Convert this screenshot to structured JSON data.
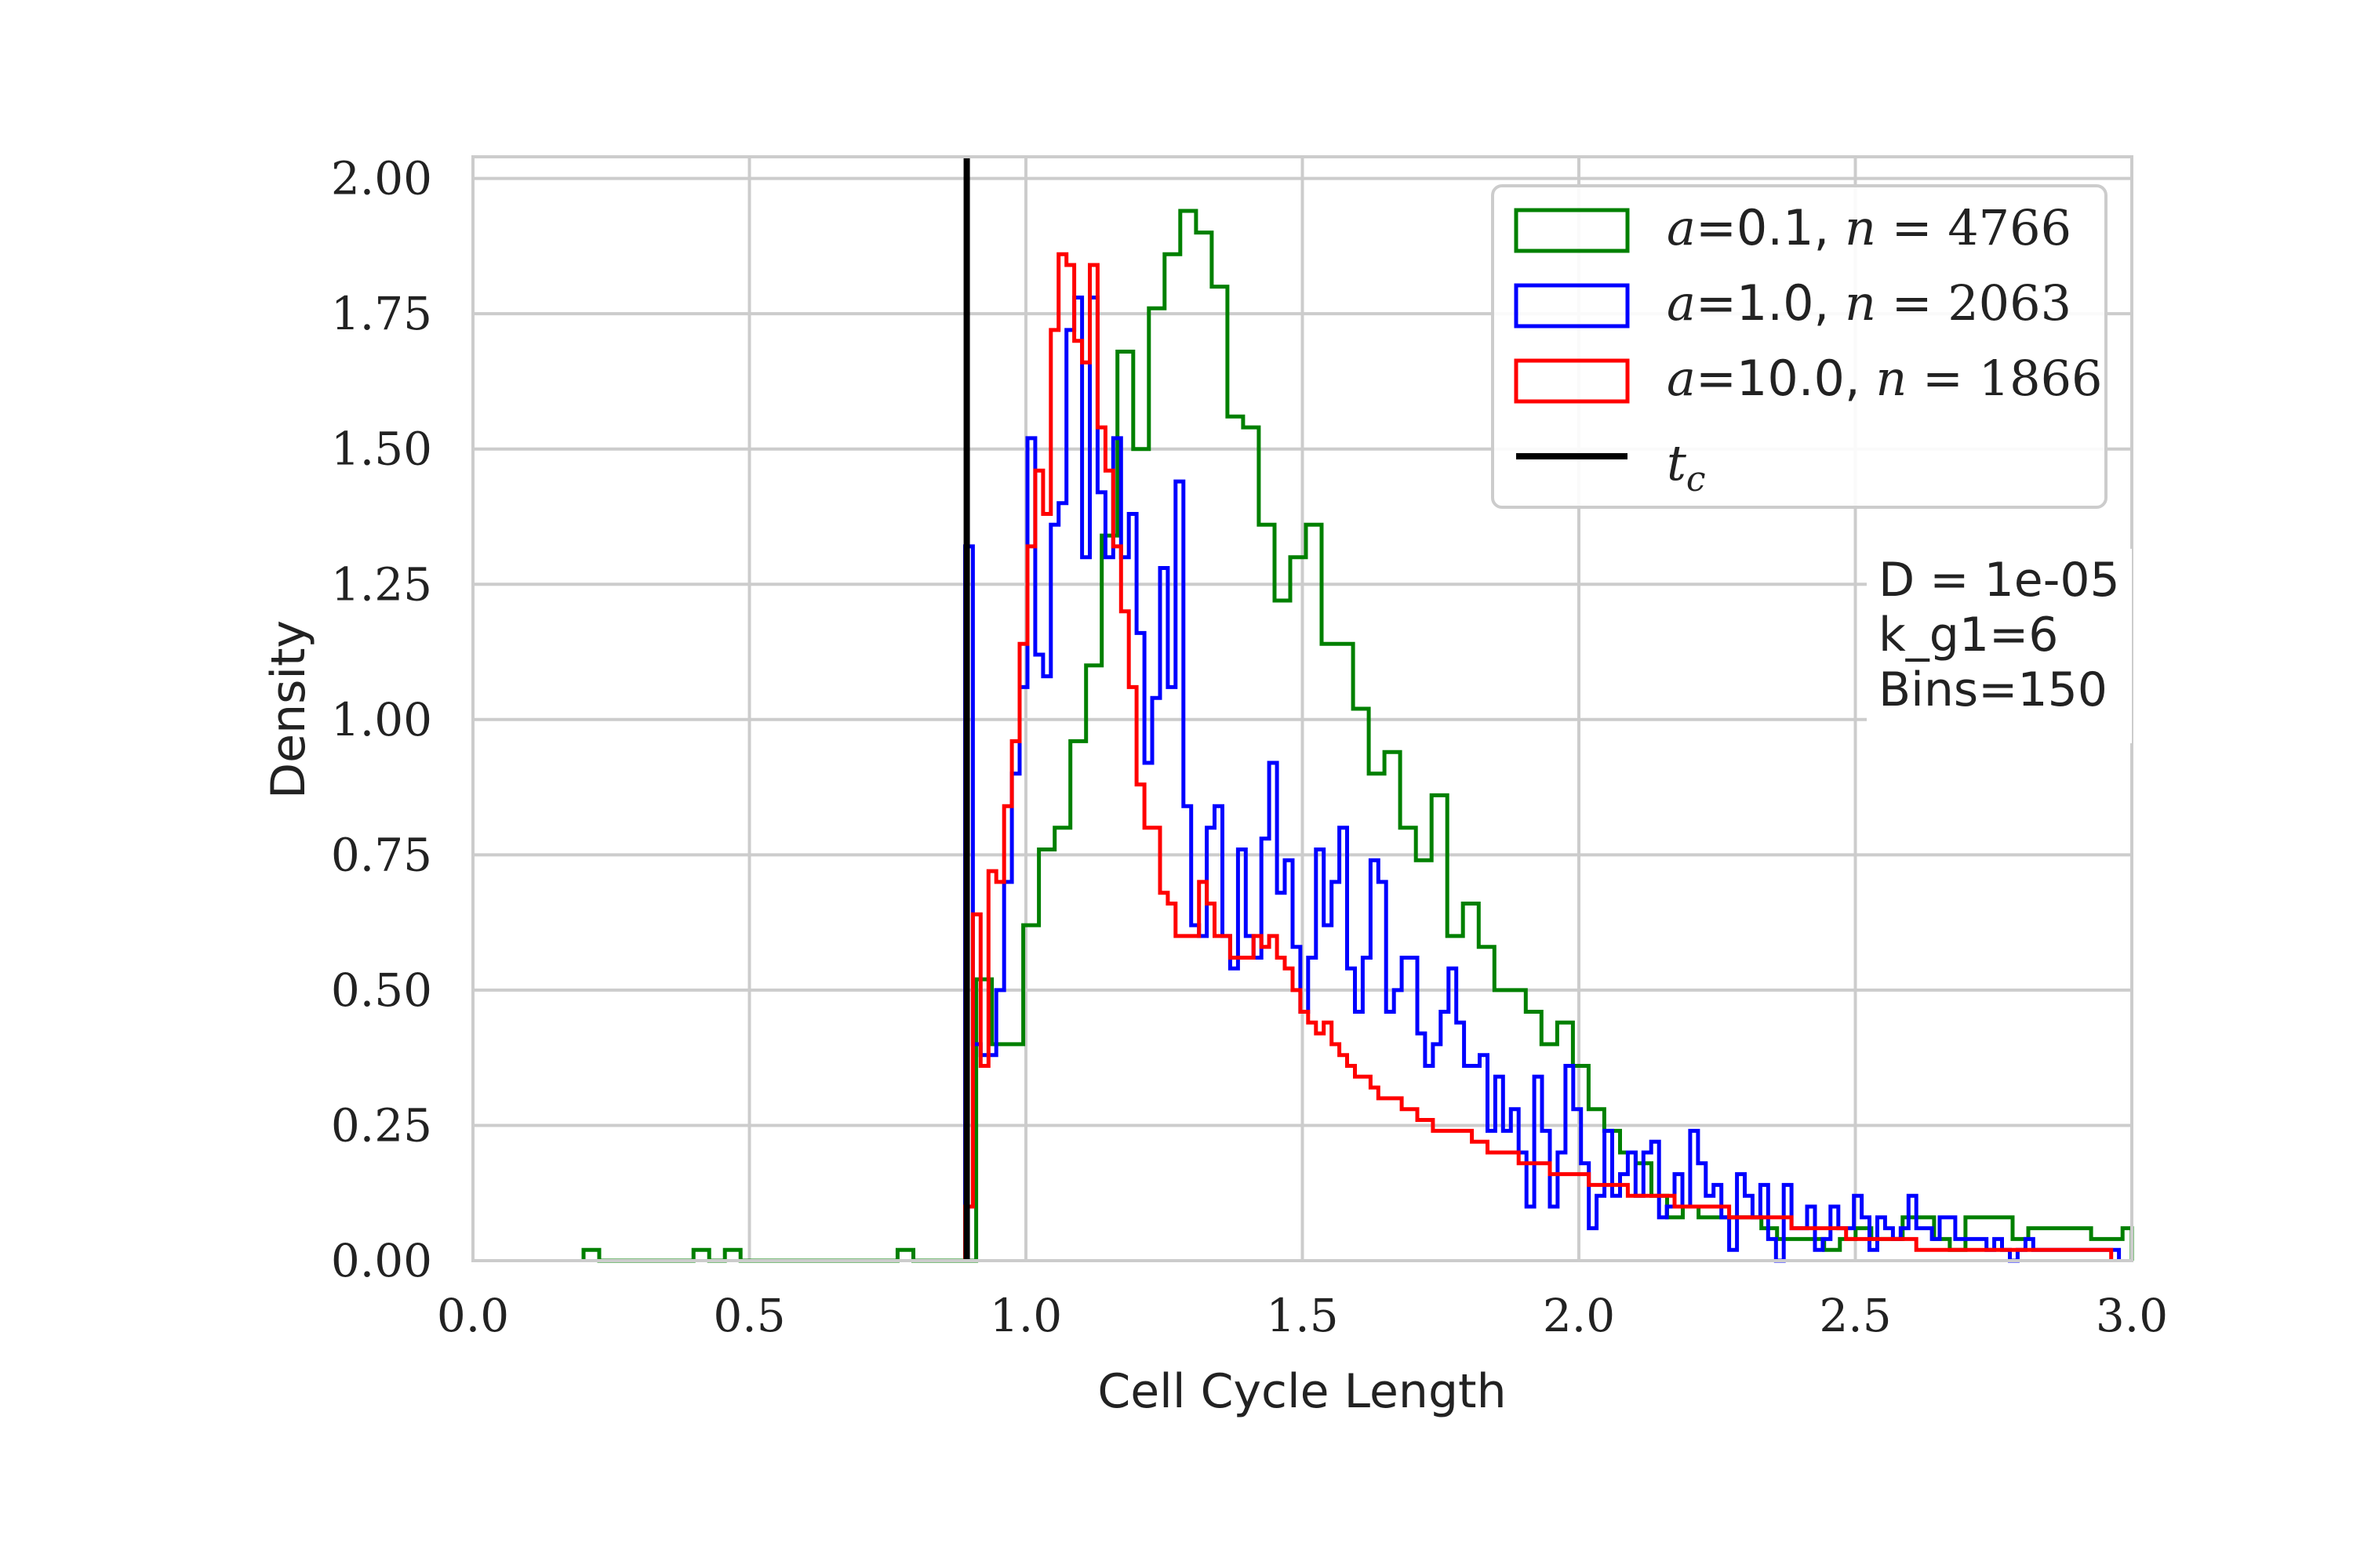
{
  "chart_data": {
    "type": "histogram",
    "title": "",
    "xlabel": "Cell Cycle Length",
    "ylabel": "Density",
    "xlim": [
      0.0,
      3.0
    ],
    "ylim": [
      0.0,
      2.04
    ],
    "xticks": [
      "0.0",
      "0.5",
      "1.0",
      "1.5",
      "2.0",
      "2.5",
      "3.0"
    ],
    "yticks": [
      "0.00",
      "0.25",
      "0.50",
      "0.75",
      "1.00",
      "1.25",
      "1.50",
      "1.75",
      "2.00"
    ],
    "grid": true,
    "legend_position": "top-right",
    "legend": [
      {
        "name": "a=0.1, n = 4766",
        "prefix": "a",
        "eq": "=0.1, ",
        "var": "n",
        "rest": " = 4766",
        "color": "#008000"
      },
      {
        "name": "a=1.0, n = 2063",
        "prefix": "a",
        "eq": "=1.0, ",
        "var": "n",
        "rest": " = 2063",
        "color": "#0000ff"
      },
      {
        "name": "a=10.0, n = 1866",
        "prefix": "a",
        "eq": "=10.0, ",
        "var": "n",
        "rest": " = 1866",
        "color": "#ff0000"
      },
      {
        "name": "t_c",
        "prefix": "t",
        "sub": "c",
        "color": "#000000"
      }
    ],
    "annotation": [
      "D = 1e-05",
      "k_g1=6",
      "Bins=150"
    ],
    "vline": {
      "name": "t_c",
      "x": 0.893,
      "color": "#000000"
    },
    "series": [
      {
        "name": "a=0.1, n = 4766",
        "color": "#008000",
        "x_start": 0.2,
        "bin_width": 0.0284,
        "values": [
          0.02,
          0,
          0,
          0,
          0,
          0,
          0,
          0.02,
          0,
          0.02,
          0,
          0,
          0,
          0,
          0,
          0,
          0,
          0,
          0,
          0,
          0.02,
          0,
          0,
          0,
          0,
          0.52,
          0.4,
          0.4,
          0.62,
          0.76,
          0.8,
          0.96,
          1.1,
          1.34,
          1.68,
          1.5,
          1.76,
          1.86,
          1.94,
          1.9,
          1.8,
          1.56,
          1.54,
          1.36,
          1.22,
          1.3,
          1.36,
          1.14,
          1.14,
          1.02,
          0.9,
          0.94,
          0.8,
          0.74,
          0.86,
          0.6,
          0.66,
          0.58,
          0.5,
          0.5,
          0.46,
          0.4,
          0.44,
          0.36,
          0.28,
          0.24,
          0.2,
          0.18,
          0.12,
          0.08,
          0.1,
          0.08,
          0.08,
          0.08,
          0.08,
          0.06,
          0.04,
          0.04,
          0.04,
          0.02,
          0.04,
          0.06,
          0.04,
          0.04,
          0.08,
          0.08,
          0.04,
          0.02,
          0.08,
          0.08,
          0.08,
          0.04,
          0.06,
          0.06,
          0.06,
          0.06,
          0.04,
          0.04,
          0.06,
          0.04,
          0.04,
          0.02,
          0.04,
          0.04,
          0.02,
          0.02,
          0.02,
          0.02,
          0.02,
          0.02,
          0.02
        ]
      },
      {
        "name": "a=1.0, n = 2063",
        "color": "#0000ff",
        "x_start": 0.89,
        "bin_width": 0.0141,
        "values": [
          1.32,
          0.4,
          0.38,
          0.38,
          0.5,
          0.7,
          0.9,
          1.06,
          1.52,
          1.12,
          1.08,
          1.36,
          1.4,
          1.72,
          1.78,
          1.3,
          1.78,
          1.42,
          1.3,
          1.52,
          1.3,
          1.38,
          1.16,
          0.92,
          1.04,
          1.28,
          1.06,
          1.44,
          0.84,
          0.62,
          0.6,
          0.8,
          0.84,
          0.6,
          0.54,
          0.76,
          0.6,
          0.56,
          0.78,
          0.92,
          0.68,
          0.74,
          0.58,
          0.46,
          0.56,
          0.76,
          0.62,
          0.7,
          0.8,
          0.54,
          0.46,
          0.56,
          0.74,
          0.7,
          0.46,
          0.5,
          0.56,
          0.56,
          0.42,
          0.36,
          0.4,
          0.46,
          0.54,
          0.44,
          0.36,
          0.36,
          0.38,
          0.24,
          0.34,
          0.24,
          0.28,
          0.2,
          0.1,
          0.34,
          0.24,
          0.1,
          0.2,
          0.36,
          0.28,
          0.18,
          0.06,
          0.12,
          0.24,
          0.12,
          0.16,
          0.2,
          0.12,
          0.2,
          0.22,
          0.08,
          0.1,
          0.16,
          0.1,
          0.24,
          0.18,
          0.12,
          0.14,
          0.08,
          0.02,
          0.16,
          0.12,
          0.08,
          0.14,
          0.04,
          0,
          0.14,
          0.06,
          0.06,
          0.1,
          0.02,
          0.04,
          0.1,
          0.06,
          0.06,
          0.12,
          0.08,
          0.02,
          0.08,
          0.06,
          0.04,
          0.06,
          0.12,
          0.06,
          0.06,
          0.04,
          0.08,
          0.08,
          0.04,
          0.04,
          0.04,
          0.04,
          0.02,
          0.04,
          0.02,
          0,
          0.02,
          0.04,
          0.02,
          0.02,
          0.02,
          0.02,
          0.02,
          0.02,
          0.02,
          0.02,
          0.02,
          0.02,
          0.02
        ]
      },
      {
        "name": "a=10.0, n = 1866",
        "color": "#ff0000",
        "x_start": 0.89,
        "bin_width": 0.0141,
        "values": [
          0.1,
          0.64,
          0.36,
          0.72,
          0.7,
          0.84,
          0.96,
          1.14,
          1.32,
          1.46,
          1.38,
          1.72,
          1.86,
          1.84,
          1.7,
          1.66,
          1.84,
          1.54,
          1.46,
          1.32,
          1.2,
          1.06,
          0.88,
          0.8,
          0.8,
          0.68,
          0.66,
          0.6,
          0.6,
          0.6,
          0.7,
          0.66,
          0.6,
          0.6,
          0.56,
          0.56,
          0.56,
          0.6,
          0.58,
          0.6,
          0.56,
          0.54,
          0.5,
          0.46,
          0.44,
          0.42,
          0.44,
          0.4,
          0.38,
          0.36,
          0.34,
          0.34,
          0.32,
          0.3,
          0.3,
          0.3,
          0.28,
          0.28,
          0.26,
          0.26,
          0.24,
          0.24,
          0.24,
          0.24,
          0.24,
          0.22,
          0.22,
          0.2,
          0.2,
          0.2,
          0.2,
          0.18,
          0.18,
          0.18,
          0.18,
          0.16,
          0.16,
          0.16,
          0.16,
          0.16,
          0.14,
          0.14,
          0.14,
          0.14,
          0.14,
          0.12,
          0.12,
          0.12,
          0.12,
          0.12,
          0.12,
          0.1,
          0.1,
          0.1,
          0.1,
          0.1,
          0.1,
          0.1,
          0.08,
          0.08,
          0.08,
          0.08,
          0.08,
          0.08,
          0.08,
          0.08,
          0.06,
          0.06,
          0.06,
          0.06,
          0.06,
          0.06,
          0.06,
          0.04,
          0.04,
          0.04,
          0.04,
          0.04,
          0.04,
          0.04,
          0.04,
          0.04,
          0.02,
          0.02,
          0.02,
          0.02,
          0.02,
          0.02,
          0.02,
          0.02,
          0.02,
          0.02,
          0.02,
          0.02,
          0.02,
          0.02,
          0.02,
          0.02,
          0.02,
          0.02,
          0.02,
          0.02,
          0.02,
          0.02,
          0.02,
          0.02,
          0.02
        ]
      }
    ]
  }
}
